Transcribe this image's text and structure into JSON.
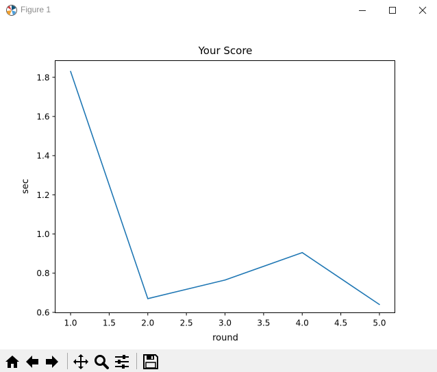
{
  "window": {
    "title": "Figure 1",
    "controls": [
      "minimize",
      "maximize",
      "close"
    ]
  },
  "colors": {
    "line": "#1f77b4",
    "axes": "#000000",
    "toolbar_bg": "#f0f0f0"
  },
  "toolbar": {
    "buttons": [
      {
        "name": "home",
        "icon": "home-icon"
      },
      {
        "name": "back",
        "icon": "arrow-left-icon"
      },
      {
        "name": "forward",
        "icon": "arrow-right-icon"
      },
      {
        "name": "pan",
        "icon": "move-icon"
      },
      {
        "name": "zoom",
        "icon": "magnifier-icon"
      },
      {
        "name": "configure-subplots",
        "icon": "sliders-icon"
      },
      {
        "name": "save",
        "icon": "floppy-icon"
      }
    ]
  },
  "chart_data": {
    "type": "line",
    "title": "Your Score",
    "xlabel": "round",
    "ylabel": "sec",
    "x": [
      1.0,
      2.0,
      3.0,
      4.0,
      5.0
    ],
    "series": [
      {
        "values": [
          1.83,
          0.67,
          0.765,
          0.905,
          0.64
        ]
      }
    ],
    "xlim": [
      0.8,
      5.2
    ],
    "ylim": [
      0.598,
      1.885
    ],
    "xticks": [
      1.0,
      1.5,
      2.0,
      2.5,
      3.0,
      3.5,
      4.0,
      4.5,
      5.0
    ],
    "xtick_labels": [
      "1.0",
      "1.5",
      "2.0",
      "2.5",
      "3.0",
      "3.5",
      "4.0",
      "4.5",
      "5.0"
    ],
    "yticks": [
      0.6,
      0.8,
      1.0,
      1.2,
      1.4,
      1.6,
      1.8
    ],
    "ytick_labels": [
      "0.6",
      "0.8",
      "1.0",
      "1.2",
      "1.4",
      "1.6",
      "1.8"
    ],
    "grid": false,
    "legend": false
  }
}
